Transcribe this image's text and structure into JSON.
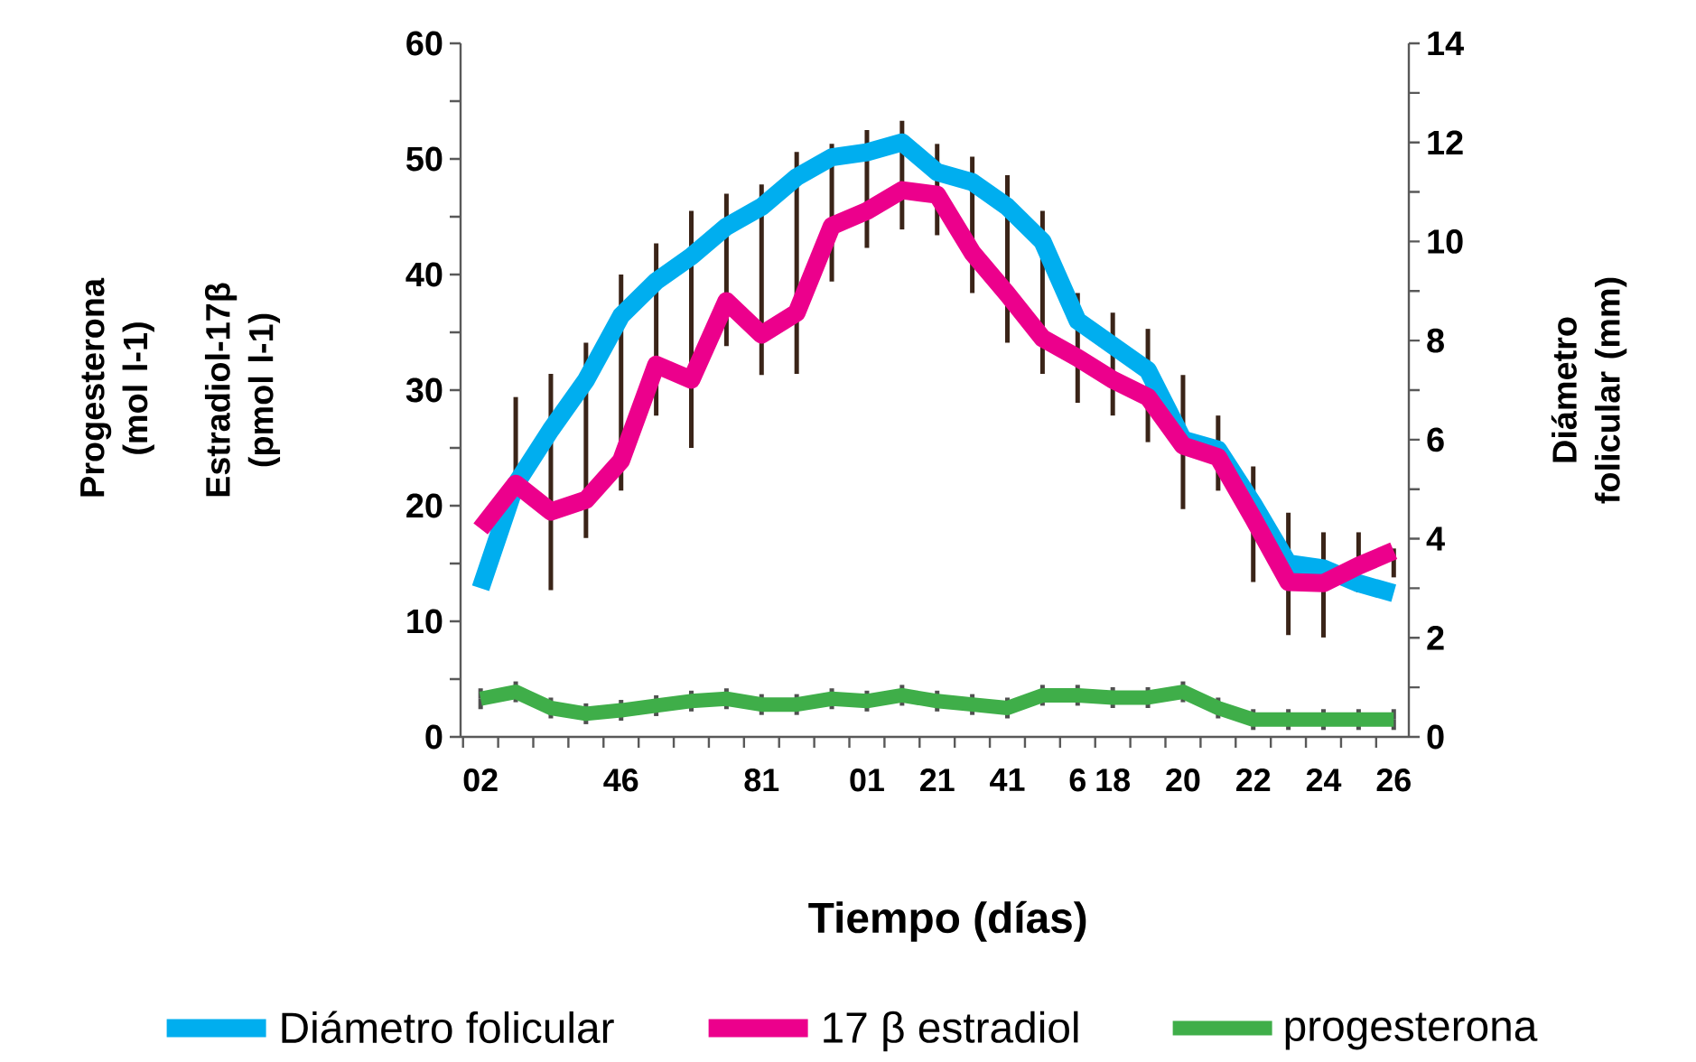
{
  "chart_data": {
    "type": "line",
    "xlabel": "Tiempo (días)",
    "ylabel": "Estradiol-17β (pmol l-1)",
    "y2label": "Diámetro folicular (mm)",
    "annotations": [
      "Progesterona (mol l-1)"
    ],
    "categories": [
      "02",
      null,
      null,
      null,
      "46",
      null,
      null,
      null,
      "81",
      null,
      null,
      "01",
      null,
      "21",
      null,
      "41",
      null,
      "6",
      "18",
      null,
      "20",
      null,
      "22",
      null,
      "24",
      null,
      "26"
    ],
    "series": [
      {
        "name": "Diámetro folicular",
        "color": "#00aeef",
        "axis": "y2",
        "values": [
          3.0,
          5.1,
          6.2,
          7.2,
          8.5,
          9.2,
          9.7,
          10.3,
          10.7,
          11.3,
          11.7,
          11.8,
          12.0,
          11.4,
          11.2,
          10.7,
          10.0,
          8.4,
          7.9,
          7.4,
          6.0,
          5.8,
          4.7,
          3.5,
          3.4,
          3.1,
          2.9
        ]
      },
      {
        "name": "17 β estradiol",
        "color": "#ec008c",
        "values": [
          18.0,
          21.9,
          19.5,
          20.5,
          23.9,
          32.2,
          30.9,
          37.7,
          34.8,
          36.7,
          44.2,
          45.5,
          47.3,
          46.9,
          41.9,
          38.3,
          34.5,
          32.8,
          30.9,
          29.4,
          25.2,
          24.2,
          18.9,
          13.4,
          13.3,
          14.8,
          16.1
        ],
        "errors": [
          null,
          [
            21.9,
            29.4
          ],
          [
            12.7,
            31.4
          ],
          [
            17.2,
            34.1
          ],
          [
            21.3,
            40.0
          ],
          [
            27.8,
            42.7
          ],
          [
            25.0,
            45.5
          ],
          [
            33.8,
            47.0
          ],
          [
            31.3,
            47.8
          ],
          [
            31.4,
            50.6
          ],
          [
            39.4,
            51.3
          ],
          [
            42.3,
            52.5
          ],
          [
            43.9,
            53.3
          ],
          [
            43.4,
            51.3
          ],
          [
            38.4,
            50.2
          ],
          [
            34.1,
            48.6
          ],
          [
            31.4,
            45.5
          ],
          [
            28.9,
            38.4
          ],
          [
            27.8,
            36.7
          ],
          [
            25.5,
            35.3
          ],
          [
            19.7,
            31.3
          ],
          [
            21.3,
            27.8
          ],
          [
            13.4,
            23.4
          ],
          [
            8.8,
            19.4
          ],
          [
            8.6,
            17.7
          ],
          [
            12.5,
            17.7
          ],
          [
            13.8,
            16.3
          ]
        ]
      },
      {
        "name": "progesterona",
        "color": "#3fae49",
        "values": [
          3.3,
          3.9,
          2.5,
          2.0,
          2.3,
          2.7,
          3.1,
          3.3,
          2.8,
          2.8,
          3.3,
          3.1,
          3.6,
          3.1,
          2.8,
          2.5,
          3.6,
          3.6,
          3.4,
          3.4,
          3.9,
          2.5,
          1.5,
          1.5,
          1.5,
          1.5,
          1.5
        ],
        "errors": [
          0.9,
          0.9,
          0.9,
          0.9,
          0.9,
          0.9,
          0.9,
          0.9,
          0.9,
          0.9,
          0.9,
          0.9,
          0.9,
          0.9,
          0.9,
          0.9,
          0.9,
          0.9,
          0.9,
          0.9,
          0.9,
          0.9,
          0.9,
          0.9,
          0.9,
          0.9,
          0.9
        ]
      }
    ],
    "ylim": [
      0,
      60
    ],
    "yticks": [
      0,
      {
        "value": 5,
        "label": null
      },
      10,
      {
        "value": 15,
        "label": null
      },
      20,
      {
        "value": 25,
        "label": null
      },
      30,
      {
        "value": 35,
        "label": null
      },
      40,
      {
        "value": 45,
        "label": null
      },
      50,
      {
        "value": 55,
        "label": null
      },
      60
    ],
    "y2lim": [
      0,
      14
    ],
    "y2ticks": [
      0,
      {
        "value": 1,
        "label": null
      },
      2,
      {
        "value": 3,
        "label": null
      },
      4,
      {
        "value": 5,
        "label": null
      },
      6,
      {
        "value": 7,
        "label": null
      },
      8,
      {
        "value": 9,
        "label": null
      },
      10,
      {
        "value": 11,
        "label": null
      },
      12,
      {
        "value": 13,
        "label": null
      },
      14
    ],
    "legend": "bottom",
    "marker": "none",
    "line_style": "solid"
  }
}
